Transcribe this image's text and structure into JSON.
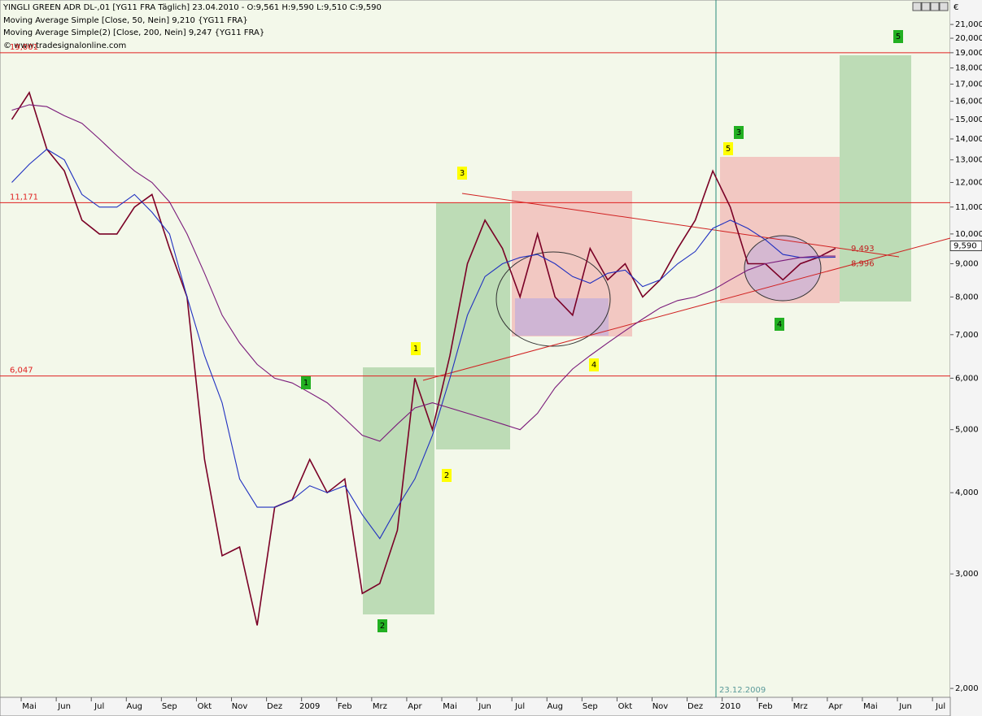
{
  "chart_data": {
    "type": "line",
    "title": "YINGLI GREEN ADR  DL-,01 [YG11 FRA  Täglich] 23.04.2010 - O:9,561 H:9,590 L:9,510 C:9,590",
    "subtitle": "© www.tradesignalonline.com",
    "currency": "€",
    "log_scale": true,
    "grid": false,
    "categories": [
      null,
      "Mai",
      null,
      "Jun",
      null,
      "Jul",
      null,
      "Aug",
      null,
      "Sep",
      null,
      "Okt",
      null,
      "Nov",
      null,
      "Dez",
      null,
      "2009",
      null,
      "Feb",
      null,
      "Mrz",
      null,
      "Apr",
      null,
      "Mai",
      null,
      "Jun",
      null,
      "Jul",
      null,
      "Aug",
      null,
      "Sep",
      null,
      "Okt",
      null,
      "Nov",
      null,
      "Dez",
      null,
      "2010",
      null,
      "Feb",
      null,
      "Mrz",
      null,
      "Apr",
      null,
      "Mai",
      null,
      "Jun",
      null,
      "Jul"
    ],
    "series": [
      {
        "name": "YINGLI GREEN ADR",
        "color": "#7a0026",
        "values": [
          15000,
          16500,
          13500,
          12500,
          10500,
          10000,
          10000,
          11000,
          11500,
          9500,
          8000,
          4500,
          3200,
          3300,
          2500,
          3800,
          3900,
          4500,
          4000,
          4200,
          2800,
          2900,
          3500,
          6000,
          5000,
          6500,
          9000,
          10500,
          9500,
          8000,
          10000,
          8000,
          7500,
          9500,
          8500,
          9000,
          8000,
          8500,
          9500,
          10500,
          12500,
          11000,
          9000,
          9000,
          8500,
          9000,
          9200,
          9500,
          null,
          null,
          null,
          null,
          null,
          null
        ]
      },
      {
        "name": "Moving Average Simple [Close, 50, Nein] 9,210 {YG11 FRA}",
        "color": "#2030c0",
        "values": [
          12000,
          12800,
          13500,
          13000,
          11500,
          11000,
          11000,
          11500,
          10800,
          10000,
          8000,
          6500,
          5500,
          4200,
          3800,
          3800,
          3900,
          4100,
          4000,
          4100,
          3700,
          3400,
          3800,
          4200,
          4900,
          6000,
          7500,
          8600,
          9000,
          9200,
          9300,
          9000,
          8600,
          8400,
          8700,
          8800,
          8300,
          8500,
          9000,
          9400,
          10200,
          10500,
          10200,
          9800,
          9300,
          9200,
          9200,
          9210,
          null,
          null,
          null,
          null,
          null,
          null
        ]
      },
      {
        "name": "Moving Average Simple(2) [Close, 200, Nein] 9,247 {YG11 FRA}",
        "color": "#7a1a7a",
        "values": [
          15500,
          15800,
          15700,
          15200,
          14800,
          14000,
          13200,
          12500,
          12000,
          11200,
          10000,
          8700,
          7500,
          6800,
          6300,
          6000,
          5900,
          5700,
          5500,
          5200,
          4900,
          4800,
          5100,
          5400,
          5500,
          5400,
          5300,
          5200,
          5100,
          5000,
          5300,
          5800,
          6200,
          6500,
          6800,
          7100,
          7400,
          7700,
          7900,
          8000,
          8200,
          8500,
          8800,
          9000,
          9100,
          9200,
          9250,
          9247,
          null,
          null,
          null,
          null,
          null,
          null
        ]
      }
    ],
    "ylim": [
      1938,
      22900
    ],
    "yticks": [
      {
        "value": 2000,
        "label": "2,000"
      },
      {
        "value": 3000,
        "label": "3,000"
      },
      {
        "value": 4000,
        "label": "4,000"
      },
      {
        "value": 5000,
        "label": "5,000"
      },
      {
        "value": 6000,
        "label": "6,000"
      },
      {
        "value": 7000,
        "label": "7,000"
      },
      {
        "value": 8000,
        "label": "8,000"
      },
      {
        "value": 9000,
        "label": "9,000"
      },
      {
        "value": 10000,
        "label": "10,000"
      },
      {
        "value": 11000,
        "label": "11,000"
      },
      {
        "value": 12000,
        "label": "12,000"
      },
      {
        "value": 13000,
        "label": "13,000"
      },
      {
        "value": 14000,
        "label": "14,000"
      },
      {
        "value": 15000,
        "label": "15,000"
      },
      {
        "value": 16000,
        "label": "16,000"
      },
      {
        "value": 17000,
        "label": "17,000"
      },
      {
        "value": 18000,
        "label": "18,000"
      },
      {
        "value": 19000,
        "label": "19,000"
      },
      {
        "value": 20000,
        "label": "20,000"
      },
      {
        "value": 21000,
        "label": "21,000"
      }
    ],
    "hlines": [
      {
        "value": 19001,
        "label": "19,001",
        "color": "#e02020"
      },
      {
        "value": 11171,
        "label": "11,171",
        "color": "#e02020"
      },
      {
        "value": 6047,
        "label": "6,047",
        "color": "#e02020"
      }
    ],
    "markers": [
      {
        "value": 9493,
        "label": "9,493"
      },
      {
        "value": 8996,
        "label": "8,996"
      }
    ],
    "last_price": {
      "value": 9590,
      "label": "9,590"
    },
    "vline_label": "23.12.2009",
    "annotations": [
      {
        "text": "3",
        "color": "#ffff00"
      },
      {
        "text": "1",
        "color": "#ffff00"
      },
      {
        "text": "2",
        "color": "#ffff00"
      },
      {
        "text": "4",
        "color": "#ffff00"
      },
      {
        "text": "5",
        "color": "#ffff00"
      },
      {
        "text": "1",
        "color": "#22b022"
      },
      {
        "text": "2",
        "color": "#22b022"
      },
      {
        "text": "3",
        "color": "#22b022"
      },
      {
        "text": "4",
        "color": "#22b022"
      },
      {
        "text": "5",
        "color": "#22b022"
      }
    ]
  }
}
